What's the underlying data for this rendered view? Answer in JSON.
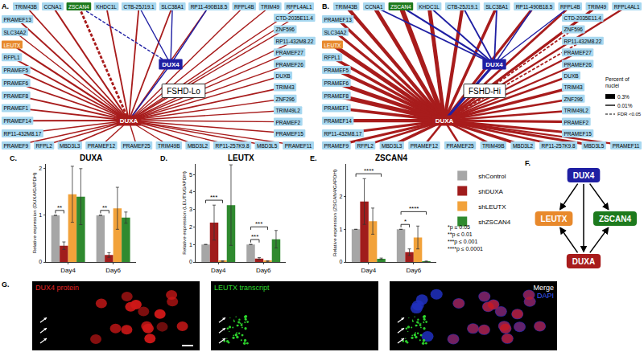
{
  "network": {
    "rows": {
      "top": [
        "TRIM43B",
        "CCNA1",
        "ZSCAN4",
        "KHDC1L",
        "CTB-25J19.1",
        "SLC38A1",
        "RP11-490B18.5",
        "RFPL4B",
        "TRIM49",
        "RFPL4AL1"
      ],
      "left": [
        "PRAMEF13",
        "SLC34A2",
        "LEUTX",
        "RFPL1",
        "PRAMEF5",
        "PRAMEF6",
        "PRAMEF8",
        "PRAMEF1",
        "PRAMEF14",
        "RP11-432M8.17"
      ],
      "right": [
        "CTD-2035E11.4",
        "ZNF596",
        "RP11-432M8.22",
        "PRAMEF27",
        "PRAMEF26",
        "DUXB",
        "TRIM43",
        "ZNF296",
        "TRIM49L2",
        "PRAMEF2",
        "PRAMEF15"
      ],
      "bottom": [
        "PRAMEF9",
        "RFPL2",
        "MBD3L3",
        "PRAMEF12",
        "PRAMEF25",
        "TRIM49B",
        "MBD3L2",
        "RP11-257K9.8",
        "MBD3L5",
        "PRAMEF11"
      ]
    },
    "hub": "DUXA",
    "source": "DUX4",
    "node_color": "#a8d8f0",
    "colors": {
      "DUXA": "#a81c1c",
      "DUX4": "#1f1fa3",
      "ZSCAN4": "#1d7a1d",
      "LEUTX": "#e8892c"
    },
    "legend": {
      "title": [
        "Percent of",
        "nuclei"
      ],
      "widths": [
        {
          "percent": 0.3,
          "label": "0.3%"
        },
        {
          "percent": 0.01,
          "label": "0.01%"
        }
      ],
      "dashed_label": "FDR <0.05"
    },
    "panels": [
      {
        "label": "A.",
        "title": "FSHD-Lo",
        "duxa_edges": {
          "TRIM43B": 0.02,
          "CCNA1": 0.03,
          "ZSCAN4": 0.06,
          "KHDC1L": 0.02,
          "CTB-25J19.1": 0.02,
          "SLC38A1": 0.02,
          "RP11-490B18.5": 0.01,
          "RFPL4B": 0.01,
          "TRIM49": 0.01,
          "RFPL4AL1": 0.01,
          "PRAMEF13": 0.02,
          "SLC34A2": 0.01,
          "LEUTX": 0.03,
          "RFPL1": 0.02,
          "PRAMEF5": 0.02,
          "PRAMEF6": 0.02,
          "PRAMEF8": 0.02,
          "PRAMEF1": 0.02,
          "PRAMEF14": 0.02,
          "RP11-432M8.17": 0.01,
          "CTD-2035E11.4": 0.01,
          "ZNF596": 0.01,
          "RP11-432M8.22": 0.01,
          "PRAMEF27": 0.01,
          "PRAMEF26": 0.01,
          "DUXB": 0.01,
          "TRIM43": 0.02,
          "ZNF296": 0.01,
          "TRIM49L2": 0.01,
          "PRAMEF2": 0.01,
          "PRAMEF15": 0.01,
          "PRAMEF9": 0.01,
          "RFPL2": 0.01,
          "MBD3L3": 0.02,
          "PRAMEF12": 0.01,
          "PRAMEF25": 0.01,
          "TRIM49B": 0.01,
          "MBD3L2": 0.02,
          "RP11-257K9.8": 0.01,
          "MBD3L5": 0.01,
          "PRAMEF11": 0.01
        },
        "dashed": [
          "ZSCAN4"
        ],
        "dux4_edges": {
          "DUXA": 0.01,
          "ZSCAN4": 0.01,
          "CTB-25J19.1": 0.01,
          "SLC38A1": 0.01,
          "RP11-490B18.5": 0.01
        },
        "dux4_dashed": [
          "ZSCAN4"
        ]
      },
      {
        "label": "B.",
        "title": "FSHD-Hi",
        "duxa_edges": {
          "TRIM43B": 0.15,
          "CCNA1": 0.2,
          "ZSCAN4": 0.3,
          "KHDC1L": 0.2,
          "CTB-25J19.1": 0.15,
          "SLC38A1": 0.1,
          "RP11-490B18.5": 0.08,
          "RFPL4B": 0.06,
          "TRIM49": 0.08,
          "RFPL4AL1": 0.04,
          "PRAMEF13": 0.1,
          "SLC34A2": 0.08,
          "LEUTX": 0.2,
          "RFPL1": 0.1,
          "PRAMEF5": 0.15,
          "PRAMEF6": 0.2,
          "PRAMEF8": 0.25,
          "PRAMEF1": 0.1,
          "PRAMEF14": 0.15,
          "RP11-432M8.17": 0.08,
          "CTD-2035E11.4": 0.03,
          "ZNF596": 0.02,
          "RP11-432M8.22": 0.02,
          "PRAMEF27": 0.03,
          "PRAMEF26": 0.03,
          "DUXB": 0.04,
          "TRIM43": 0.1,
          "ZNF296": 0.05,
          "TRIM49L2": 0.05,
          "PRAMEF2": 0.08,
          "PRAMEF15": 0.08,
          "PRAMEF9": 0.08,
          "RFPL2": 0.05,
          "MBD3L3": 0.1,
          "PRAMEF12": 0.05,
          "PRAMEF25": 0.04,
          "TRIM49B": 0.05,
          "MBD3L2": 0.1,
          "RP11-257K9.8": 0.04,
          "MBD3L5": 0.08,
          "PRAMEF11": 0.03
        },
        "dashed": [
          "ZNF596",
          "RP11-432M8.22"
        ],
        "dux4_edges": {
          "DUXA": 0.08,
          "CCNA1": 0.02,
          "ZSCAN4": 0.03,
          "KHDC1L": 0.02,
          "CTB-25J19.1": 0.02,
          "SLC38A1": 0.02,
          "RP11-490B18.5": 0.01,
          "RFPL4B": 0.01
        },
        "dux4_dashed": []
      }
    ]
  },
  "chart_data": [
    {
      "type": "bar",
      "label": "C.",
      "title": "DUXA",
      "ylabel": "Relative expression (DUXA/GAPDH)",
      "categories": [
        "Day4",
        "Day6"
      ],
      "series": [
        {
          "name": "shControl",
          "color": "#a6a6a6",
          "values": [
            1,
            1
          ],
          "errors": [
            0,
            0
          ]
        },
        {
          "name": "shDUXA",
          "color": "#a01c1c",
          "values": [
            0.35,
            0.15
          ],
          "errors": [
            0.08,
            0.05
          ]
        },
        {
          "name": "shLEUTX",
          "color": "#f2a23a",
          "values": [
            1.45,
            1.15
          ],
          "errors": [
            0.6,
            0.45
          ]
        },
        {
          "name": "shZSCAN4",
          "color": "#2f8a2f",
          "values": [
            1.4,
            0.95
          ],
          "errors": [
            0.6,
            0.12
          ]
        }
      ],
      "ylim": [
        0,
        2.1
      ],
      "yticks": [
        0,
        1,
        2
      ],
      "grid": false,
      "significance": [
        {
          "category": "Day4",
          "from": "shControl",
          "to": "shDUXA",
          "text": "**"
        },
        {
          "category": "Day6",
          "from": "shControl",
          "to": "shDUXA",
          "text": "**"
        }
      ]
    },
    {
      "type": "bar",
      "label": "D.",
      "title": "LEUTX",
      "ylabel": "Relative expression (LEUTX/GAPDH)",
      "categories": [
        "Day4",
        "Day6"
      ],
      "series": [
        {
          "name": "shControl",
          "color": "#a6a6a6",
          "values": [
            1,
            1
          ],
          "errors": [
            0,
            0
          ]
        },
        {
          "name": "shDUXA",
          "color": "#a01c1c",
          "values": [
            2.25,
            0.2
          ],
          "errors": [
            1.0,
            0.05
          ]
        },
        {
          "name": "shLEUTX",
          "color": "#f2a23a",
          "values": [
            0.05,
            0.05
          ],
          "errors": [
            0.02,
            0.02
          ]
        },
        {
          "name": "shZSCAN4",
          "color": "#2f8a2f",
          "values": [
            3.25,
            1.3
          ],
          "errors": [
            2.3,
            0.5
          ]
        }
      ],
      "ylim": [
        0,
        5.6
      ],
      "yticks": [
        0,
        1,
        2,
        3,
        4,
        5
      ],
      "grid": false,
      "significance": [
        {
          "category": "Day4",
          "from": "shControl",
          "to": "shLEUTX",
          "text": "***"
        },
        {
          "category": "Day6",
          "from": "shControl",
          "to": "shDUXA",
          "text": "***"
        },
        {
          "category": "Day6",
          "from": "shControl",
          "to": "shLEUTX",
          "text": "***"
        }
      ]
    },
    {
      "type": "bar",
      "label": "E.",
      "title": "ZSCAN4",
      "ylabel": "Relative expression (ZSCAN4/GAPDH)",
      "categories": [
        "Day4",
        "Day6"
      ],
      "series": [
        {
          "name": "shControl",
          "color": "#a6a6a6",
          "values": [
            1,
            1
          ],
          "errors": [
            0,
            0
          ]
        },
        {
          "name": "shDUXA",
          "color": "#a01c1c",
          "values": [
            1.85,
            0.3
          ],
          "errors": [
            0.7,
            0.1
          ]
        },
        {
          "name": "shLEUTX",
          "color": "#f2a23a",
          "values": [
            1.25,
            0.75
          ],
          "errors": [
            0.4,
            0.35
          ]
        },
        {
          "name": "shZSCAN4",
          "color": "#2f8a2f",
          "values": [
            0.1,
            0.02
          ],
          "errors": [
            0.02,
            0.01
          ]
        }
      ],
      "ylim": [
        0,
        3
      ],
      "yticks": [
        0,
        1,
        2
      ],
      "grid": false,
      "significance": [
        {
          "category": "Day4",
          "from": "shControl",
          "to": "shZSCAN4",
          "text": "****"
        },
        {
          "category": "Day6",
          "from": "shControl",
          "to": "shDUXA",
          "text": "*"
        },
        {
          "category": "Day6",
          "from": "shControl",
          "to": "shZSCAN4",
          "text": "****"
        }
      ]
    }
  ],
  "significance_key": [
    "*p ≤ 0.05",
    "**p ≤ 0.01",
    "***p ≤ 0.001",
    "****p ≤ 0.0001"
  ],
  "diagram_f": {
    "label": "F.",
    "nodes": [
      "DUX4",
      "LEUTX",
      "ZSCAN4",
      "DUXA"
    ],
    "edges": [
      [
        "DUX4",
        "LEUTX"
      ],
      [
        "DUX4",
        "ZSCAN4"
      ],
      [
        "DUX4",
        "DUXA"
      ],
      [
        "DUXA",
        "LEUTX"
      ],
      [
        "DUXA",
        "ZSCAN4"
      ]
    ]
  },
  "image_g": {
    "label": "G.",
    "panels": [
      {
        "texts": [
          {
            "text": "DUX4 protein",
            "color": "#e02424"
          }
        ]
      },
      {
        "texts": [
          {
            "text": "LEUTX transcript",
            "color": "#2ed82e"
          }
        ]
      },
      {
        "texts": [
          {
            "text": "Merge",
            "color": "#ffffff"
          },
          {
            "text": "DAPI",
            "color": "#3b5bff"
          }
        ]
      }
    ]
  }
}
